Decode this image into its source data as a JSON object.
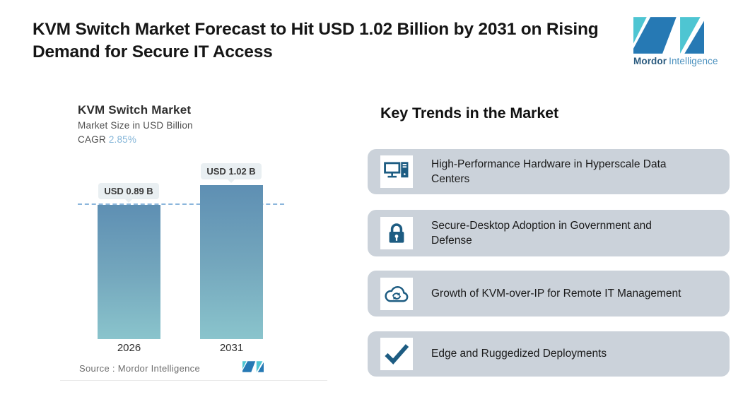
{
  "header": {
    "title": "KVM Switch Market Forecast to Hit USD 1.02 Billion by 2031 on Rising Demand for Secure IT Access",
    "brand": {
      "name_bold": "Mordor",
      "name_regular": "Intelligence"
    }
  },
  "colors": {
    "brand_teal": "#4ec5d2",
    "brand_blue": "#2679b4",
    "icon_blue": "#1d5c82",
    "card_background": "#cbd2da",
    "cagr_value": "#84b5d8",
    "bar_gradient_top": "#5e8fb3",
    "bar_gradient_bottom": "#8ac4cc",
    "dashed_line": "#77aad6",
    "callout_background": "#e9eff2"
  },
  "chart_data": {
    "type": "bar",
    "title": "KVM Switch Market",
    "subtitle": "Market Size in USD Billion",
    "cagr_label": "CAGR",
    "cagr_value": "2.85%",
    "categories": [
      "2026",
      "2031"
    ],
    "values": [
      0.89,
      1.02
    ],
    "value_labels": [
      "USD 0.89 B",
      "USD 1.02 B"
    ],
    "unit": "USD Billion",
    "ylim": [
      0,
      1.1
    ],
    "reference_line": 0.89,
    "grid": false,
    "legend": false,
    "source": "Source :  Mordor Intelligence"
  },
  "trends": {
    "heading": "Key Trends in the Market",
    "items": [
      {
        "icon": "desktop-computer-icon",
        "text": "High-Performance Hardware in Hyperscale Data Centers"
      },
      {
        "icon": "padlock-icon",
        "text": "Secure-Desktop Adoption in Government and Defense"
      },
      {
        "icon": "cloud-sync-icon",
        "text": "Growth of KVM-over-IP for Remote IT Management"
      },
      {
        "icon": "checkmark-icon",
        "text": "Edge and Ruggedized Deployments"
      }
    ]
  }
}
